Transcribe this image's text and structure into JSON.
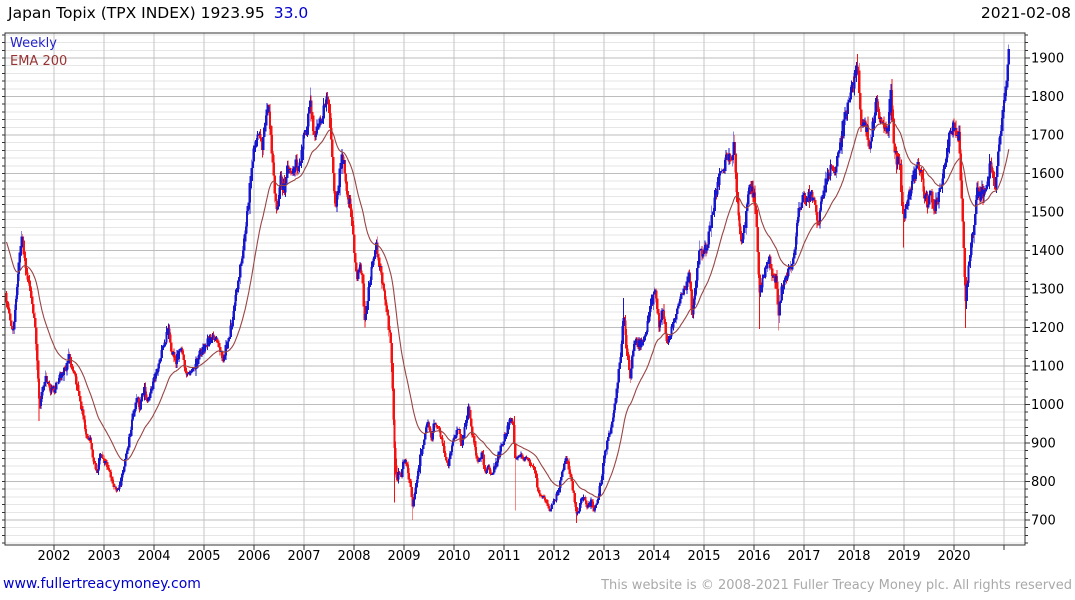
{
  "header": {
    "title": "Japan Topix (TPX INDEX) 1923.95",
    "change": "33.0",
    "date": "2021-02-08"
  },
  "legend": {
    "series": "Weekly",
    "overlay": "EMA 200"
  },
  "footer": {
    "link": "www.fullertreacymoney.com",
    "copyright": "This website is © 2008-2021 Fuller Treacy Money plc. All rights reserved"
  },
  "chart_data": {
    "type": "candlestick",
    "timeframe": "weekly",
    "instrument": "Japan Topix (TPX INDEX)",
    "last_price": 1923.95,
    "change": 33.0,
    "date": "2021-02-08",
    "legend_position": "top-left",
    "grid": true,
    "x_ticks": [
      2002,
      2003,
      2004,
      2005,
      2006,
      2007,
      2008,
      2009,
      2010,
      2011,
      2012,
      2013,
      2014,
      2015,
      2016,
      2017,
      2018,
      2019,
      2020
    ],
    "x_grid_last": 2021,
    "y_ticks": [
      700,
      800,
      900,
      1000,
      1100,
      1200,
      1300,
      1400,
      1500,
      1600,
      1700,
      1800,
      1900
    ],
    "y_minor_step": 20,
    "x_range": [
      2001.02,
      2021.42
    ],
    "y_range": [
      635,
      1965
    ],
    "colors": {
      "up": "#1717cf",
      "down": "#f31111",
      "ema": "#9a4444",
      "grid_minor": "#e6e6e6",
      "grid_major": "#bdbdbd",
      "grid_year": "#c6c6c6",
      "axis": "#333333"
    },
    "overlay": {
      "name": "EMA 200",
      "ema_period_weeks": 40,
      "initial": 1430
    },
    "price_path": [
      [
        2001.03,
        1290
      ],
      [
        2001.1,
        1245
      ],
      [
        2001.18,
        1180
      ],
      [
        2001.26,
        1310
      ],
      [
        2001.36,
        1435
      ],
      [
        2001.44,
        1340
      ],
      [
        2001.52,
        1300
      ],
      [
        2001.6,
        1235
      ],
      [
        2001.66,
        1130
      ],
      [
        2001.71,
        990
      ],
      [
        2001.76,
        1030
      ],
      [
        2001.83,
        1070
      ],
      [
        2001.9,
        1045
      ],
      [
        2001.97,
        1032
      ],
      [
        2002.06,
        1050
      ],
      [
        2002.14,
        1078
      ],
      [
        2002.22,
        1090
      ],
      [
        2002.3,
        1125
      ],
      [
        2002.4,
        1078
      ],
      [
        2002.48,
        1035
      ],
      [
        2002.56,
        985
      ],
      [
        2002.64,
        930
      ],
      [
        2002.72,
        905
      ],
      [
        2002.8,
        852
      ],
      [
        2002.86,
        825
      ],
      [
        2002.93,
        868
      ],
      [
        2003.0,
        855
      ],
      [
        2003.08,
        832
      ],
      [
        2003.17,
        798
      ],
      [
        2003.25,
        775
      ],
      [
        2003.33,
        792
      ],
      [
        2003.42,
        852
      ],
      [
        2003.5,
        908
      ],
      [
        2003.58,
        968
      ],
      [
        2003.65,
        1018
      ],
      [
        2003.72,
        992
      ],
      [
        2003.8,
        1038
      ],
      [
        2003.87,
        1012
      ],
      [
        2003.95,
        1038
      ],
      [
        2004.04,
        1082
      ],
      [
        2004.13,
        1125
      ],
      [
        2004.2,
        1155
      ],
      [
        2004.28,
        1192
      ],
      [
        2004.36,
        1132
      ],
      [
        2004.44,
        1112
      ],
      [
        2004.52,
        1148
      ],
      [
        2004.6,
        1112
      ],
      [
        2004.68,
        1072
      ],
      [
        2004.78,
        1088
      ],
      [
        2004.88,
        1118
      ],
      [
        2004.96,
        1142
      ],
      [
        2005.05,
        1158
      ],
      [
        2005.13,
        1172
      ],
      [
        2005.2,
        1178
      ],
      [
        2005.3,
        1148
      ],
      [
        2005.38,
        1122
      ],
      [
        2005.48,
        1162
      ],
      [
        2005.56,
        1218
      ],
      [
        2005.64,
        1288
      ],
      [
        2005.72,
        1348
      ],
      [
        2005.8,
        1428
      ],
      [
        2005.88,
        1512
      ],
      [
        2005.96,
        1628
      ],
      [
        2006.04,
        1678
      ],
      [
        2006.1,
        1708
      ],
      [
        2006.17,
        1662
      ],
      [
        2006.26,
        1778
      ],
      [
        2006.33,
        1722
      ],
      [
        2006.4,
        1582
      ],
      [
        2006.46,
        1492
      ],
      [
        2006.53,
        1588
      ],
      [
        2006.6,
        1558
      ],
      [
        2006.68,
        1618
      ],
      [
        2006.76,
        1588
      ],
      [
        2006.84,
        1628
      ],
      [
        2006.91,
        1612
      ],
      [
        2006.98,
        1682
      ],
      [
        2007.06,
        1722
      ],
      [
        2007.12,
        1812
      ],
      [
        2007.19,
        1702
      ],
      [
        2007.27,
        1722
      ],
      [
        2007.35,
        1748
      ],
      [
        2007.44,
        1788
      ],
      [
        2007.52,
        1752
      ],
      [
        2007.58,
        1608
      ],
      [
        2007.63,
        1498
      ],
      [
        2007.69,
        1562
      ],
      [
        2007.76,
        1655
      ],
      [
        2007.83,
        1588
      ],
      [
        2007.9,
        1528
      ],
      [
        2007.97,
        1472
      ],
      [
        2008.05,
        1322
      ],
      [
        2008.11,
        1358
      ],
      [
        2008.17,
        1328
      ],
      [
        2008.21,
        1218
      ],
      [
        2008.29,
        1292
      ],
      [
        2008.37,
        1362
      ],
      [
        2008.44,
        1422
      ],
      [
        2008.52,
        1352
      ],
      [
        2008.6,
        1288
      ],
      [
        2008.68,
        1218
      ],
      [
        2008.74,
        1148
      ],
      [
        2008.78,
        1008
      ],
      [
        2008.82,
        848
      ],
      [
        2008.86,
        792
      ],
      [
        2008.9,
        832
      ],
      [
        2008.94,
        812
      ],
      [
        2008.98,
        858
      ],
      [
        2009.05,
        842
      ],
      [
        2009.12,
        798
      ],
      [
        2009.18,
        735
      ],
      [
        2009.25,
        792
      ],
      [
        2009.33,
        868
      ],
      [
        2009.41,
        918
      ],
      [
        2009.48,
        952
      ],
      [
        2009.55,
        908
      ],
      [
        2009.62,
        958
      ],
      [
        2009.69,
        938
      ],
      [
        2009.75,
        912
      ],
      [
        2009.81,
        878
      ],
      [
        2009.88,
        838
      ],
      [
        2009.95,
        892
      ],
      [
        2010.03,
        918
      ],
      [
        2010.09,
        948
      ],
      [
        2010.15,
        888
      ],
      [
        2010.22,
        948
      ],
      [
        2010.29,
        988
      ],
      [
        2010.36,
        932
      ],
      [
        2010.43,
        878
      ],
      [
        2010.5,
        852
      ],
      [
        2010.56,
        875
      ],
      [
        2010.63,
        822
      ],
      [
        2010.69,
        838
      ],
      [
        2010.76,
        818
      ],
      [
        2010.83,
        838
      ],
      [
        2010.9,
        872
      ],
      [
        2010.97,
        898
      ],
      [
        2011.05,
        928
      ],
      [
        2011.13,
        962
      ],
      [
        2011.19,
        938
      ],
      [
        2011.23,
        848
      ],
      [
        2011.31,
        868
      ],
      [
        2011.39,
        852
      ],
      [
        2011.47,
        858
      ],
      [
        2011.55,
        845
      ],
      [
        2011.61,
        832
      ],
      [
        2011.67,
        782
      ],
      [
        2011.74,
        765
      ],
      [
        2011.82,
        748
      ],
      [
        2011.9,
        728
      ],
      [
        2011.97,
        738
      ],
      [
        2012.05,
        762
      ],
      [
        2012.13,
        802
      ],
      [
        2012.22,
        862
      ],
      [
        2012.3,
        838
      ],
      [
        2012.38,
        778
      ],
      [
        2012.46,
        718
      ],
      [
        2012.53,
        742
      ],
      [
        2012.6,
        755
      ],
      [
        2012.67,
        732
      ],
      [
        2012.74,
        748
      ],
      [
        2012.81,
        724
      ],
      [
        2012.88,
        758
      ],
      [
        2012.95,
        808
      ],
      [
        2013.02,
        872
      ],
      [
        2013.1,
        922
      ],
      [
        2013.18,
        958
      ],
      [
        2013.26,
        1048
      ],
      [
        2013.34,
        1138
      ],
      [
        2013.4,
        1242
      ],
      [
        2013.46,
        1132
      ],
      [
        2013.52,
        1072
      ],
      [
        2013.58,
        1142
      ],
      [
        2013.64,
        1168
      ],
      [
        2013.71,
        1152
      ],
      [
        2013.78,
        1172
      ],
      [
        2013.86,
        1198
      ],
      [
        2013.94,
        1262
      ],
      [
        2014.02,
        1288
      ],
      [
        2014.1,
        1208
      ],
      [
        2014.18,
        1242
      ],
      [
        2014.27,
        1152
      ],
      [
        2014.35,
        1192
      ],
      [
        2014.44,
        1238
      ],
      [
        2014.53,
        1272
      ],
      [
        2014.62,
        1302
      ],
      [
        2014.7,
        1338
      ],
      [
        2014.77,
        1232
      ],
      [
        2014.84,
        1322
      ],
      [
        2014.92,
        1408
      ],
      [
        2014.98,
        1392
      ],
      [
        2015.06,
        1412
      ],
      [
        2015.14,
        1472
      ],
      [
        2015.22,
        1542
      ],
      [
        2015.3,
        1582
      ],
      [
        2015.38,
        1612
      ],
      [
        2015.46,
        1648
      ],
      [
        2015.53,
        1632
      ],
      [
        2015.6,
        1682
      ],
      [
        2015.66,
        1548
      ],
      [
        2015.71,
        1448
      ],
      [
        2015.77,
        1418
      ],
      [
        2015.83,
        1478
      ],
      [
        2015.89,
        1552
      ],
      [
        2015.95,
        1558
      ],
      [
        2016.02,
        1528
      ],
      [
        2016.07,
        1422
      ],
      [
        2016.11,
        1295
      ],
      [
        2016.17,
        1322
      ],
      [
        2016.24,
        1362
      ],
      [
        2016.31,
        1382
      ],
      [
        2016.37,
        1338
      ],
      [
        2016.44,
        1322
      ],
      [
        2016.49,
        1238
      ],
      [
        2016.55,
        1295
      ],
      [
        2016.62,
        1322
      ],
      [
        2016.7,
        1348
      ],
      [
        2016.78,
        1372
      ],
      [
        2016.85,
        1448
      ],
      [
        2016.92,
        1518
      ],
      [
        2016.98,
        1545
      ],
      [
        2017.06,
        1525
      ],
      [
        2017.13,
        1552
      ],
      [
        2017.21,
        1522
      ],
      [
        2017.29,
        1468
      ],
      [
        2017.37,
        1542
      ],
      [
        2017.45,
        1582
      ],
      [
        2017.53,
        1612
      ],
      [
        2017.61,
        1612
      ],
      [
        2017.69,
        1638
      ],
      [
        2017.77,
        1705
      ],
      [
        2017.85,
        1768
      ],
      [
        2017.93,
        1808
      ],
      [
        2018.0,
        1842
      ],
      [
        2018.06,
        1892
      ],
      [
        2018.1,
        1828
      ],
      [
        2018.14,
        1728
      ],
      [
        2018.21,
        1742
      ],
      [
        2018.27,
        1705
      ],
      [
        2018.31,
        1652
      ],
      [
        2018.39,
        1742
      ],
      [
        2018.46,
        1798
      ],
      [
        2018.53,
        1742
      ],
      [
        2018.61,
        1732
      ],
      [
        2018.68,
        1712
      ],
      [
        2018.74,
        1808
      ],
      [
        2018.8,
        1682
      ],
      [
        2018.85,
        1628
      ],
      [
        2018.89,
        1652
      ],
      [
        2018.93,
        1612
      ],
      [
        2018.98,
        1478
      ],
      [
        2019.04,
        1512
      ],
      [
        2019.11,
        1548
      ],
      [
        2019.19,
        1592
      ],
      [
        2019.27,
        1618
      ],
      [
        2019.33,
        1622
      ],
      [
        2019.41,
        1548
      ],
      [
        2019.47,
        1522
      ],
      [
        2019.53,
        1562
      ],
      [
        2019.6,
        1508
      ],
      [
        2019.67,
        1528
      ],
      [
        2019.73,
        1562
      ],
      [
        2019.81,
        1628
      ],
      [
        2019.89,
        1682
      ],
      [
        2019.96,
        1722
      ],
      [
        2020.04,
        1702
      ],
      [
        2020.1,
        1692
      ],
      [
        2020.15,
        1552
      ],
      [
        2020.2,
        1392
      ],
      [
        2020.23,
        1272
      ],
      [
        2020.29,
        1348
      ],
      [
        2020.35,
        1422
      ],
      [
        2020.41,
        1462
      ],
      [
        2020.46,
        1562
      ],
      [
        2020.52,
        1542
      ],
      [
        2020.59,
        1558
      ],
      [
        2020.66,
        1582
      ],
      [
        2020.72,
        1618
      ],
      [
        2020.78,
        1602
      ],
      [
        2020.83,
        1568
      ],
      [
        2020.89,
        1662
      ],
      [
        2020.95,
        1732
      ],
      [
        2021.01,
        1792
      ],
      [
        2021.06,
        1858
      ],
      [
        2021.11,
        1923.95
      ]
    ],
    "extremes": [
      {
        "t": 2001.71,
        "low": 957
      },
      {
        "t": 2006.26,
        "high": 1783
      },
      {
        "t": 2007.12,
        "high": 1823
      },
      {
        "t": 2008.82,
        "low": 746
      },
      {
        "t": 2009.18,
        "low": 700
      },
      {
        "t": 2010.29,
        "high": 1001
      },
      {
        "t": 2011.23,
        "low": 725
      },
      {
        "t": 2012.46,
        "low": 692
      },
      {
        "t": 2013.4,
        "high": 1276
      },
      {
        "t": 2015.6,
        "high": 1702
      },
      {
        "t": 2016.11,
        "low": 1196
      },
      {
        "t": 2016.49,
        "low": 1192
      },
      {
        "t": 2018.06,
        "high": 1911
      },
      {
        "t": 2018.98,
        "low": 1408
      },
      {
        "t": 2020.23,
        "low": 1199
      },
      {
        "t": 2021.11,
        "high": 1932
      }
    ]
  }
}
